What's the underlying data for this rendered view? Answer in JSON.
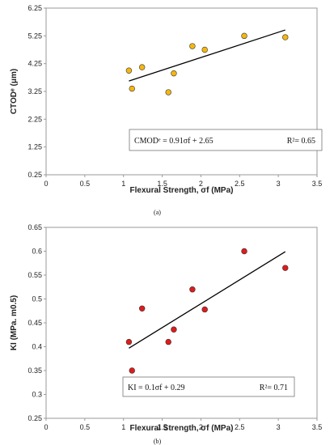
{
  "chart_data": [
    {
      "type": "scatter",
      "panel_label": "(a)",
      "xlabel": "Flexural Strength, σf (MPa)",
      "ylabel": "CTODᵉ (μm)",
      "xlim": [
        0,
        3.5
      ],
      "ylim": [
        0.25,
        6.25
      ],
      "x_ticks": [
        "0",
        "0.5",
        "1",
        "1.5",
        "2",
        "2.5",
        "3",
        "3.5"
      ],
      "y_ticks": [
        "0.25",
        "1.25",
        "2.25",
        "3.25",
        "4.25",
        "5.25",
        "6.25"
      ],
      "marker_color": "#F5B70F",
      "points": [
        {
          "x": 1.07,
          "y": 4.0
        },
        {
          "x": 1.11,
          "y": 3.35
        },
        {
          "x": 1.24,
          "y": 4.12
        },
        {
          "x": 1.58,
          "y": 3.22
        },
        {
          "x": 1.65,
          "y": 3.9
        },
        {
          "x": 1.89,
          "y": 4.88
        },
        {
          "x": 2.05,
          "y": 4.75
        },
        {
          "x": 2.56,
          "y": 5.25
        },
        {
          "x": 3.09,
          "y": 5.2
        }
      ],
      "trendline": {
        "slope": 0.91,
        "intercept": 2.65,
        "x_range": [
          1.07,
          3.09
        ]
      },
      "equation_text": "CMODᵉ = 0.91σf + 2.65",
      "r2_text": "R²= 0.65",
      "grid": false
    },
    {
      "type": "scatter",
      "panel_label": "(b)",
      "xlabel": "Flexural Strength, σf (MPa)",
      "ylabel": "KI (MPa. m0.5)",
      "xlim": [
        0,
        3.5
      ],
      "ylim": [
        0.25,
        0.65
      ],
      "x_ticks": [
        "0",
        "0.5",
        "1",
        "1.5",
        "2",
        "2.5",
        "3",
        "3.5"
      ],
      "y_ticks": [
        "0.25",
        "0.3",
        "0.35",
        "0.4",
        "0.45",
        "0.5",
        "0.55",
        "0.6",
        "0.65"
      ],
      "marker_color": "#E01B1B",
      "points": [
        {
          "x": 1.07,
          "y": 0.41
        },
        {
          "x": 1.11,
          "y": 0.35
        },
        {
          "x": 1.24,
          "y": 0.48
        },
        {
          "x": 1.58,
          "y": 0.41
        },
        {
          "x": 1.65,
          "y": 0.436
        },
        {
          "x": 1.89,
          "y": 0.52
        },
        {
          "x": 2.05,
          "y": 0.478
        },
        {
          "x": 2.56,
          "y": 0.6
        },
        {
          "x": 3.09,
          "y": 0.565
        }
      ],
      "trendline": {
        "slope": 0.1,
        "intercept": 0.29,
        "x_range": [
          1.07,
          3.09
        ]
      },
      "equation_text": "KI = 0.1σf + 0.29",
      "r2_text": "R²= 0.71",
      "grid": false
    }
  ]
}
